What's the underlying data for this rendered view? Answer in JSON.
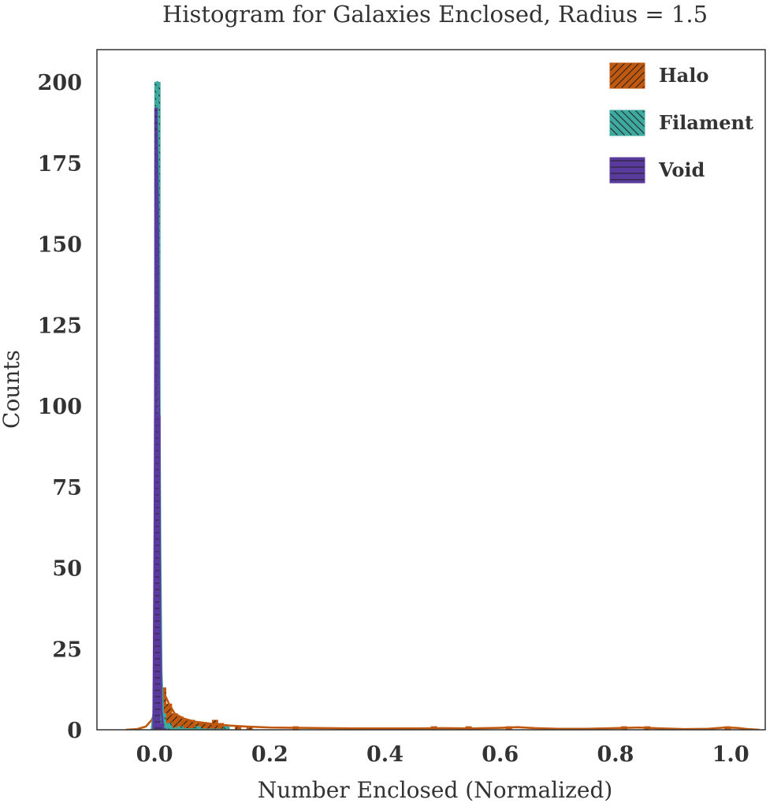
{
  "chart_data": {
    "type": "histogram",
    "title": "Histogram for Galaxies Enclosed, Radius = 1.5",
    "xlabel": "Number Enclosed (Normalized)",
    "ylabel": "Counts",
    "xlim": [
      -0.1,
      1.06
    ],
    "ylim": [
      0,
      210
    ],
    "xticks": [
      "0.0",
      "0.2",
      "0.4",
      "0.6",
      "0.8",
      "1.0"
    ],
    "yticks": [
      "0",
      "25",
      "50",
      "75",
      "100",
      "125",
      "150",
      "175",
      "200"
    ],
    "grid": false,
    "legend_position": "top-right",
    "series": [
      {
        "name": "Halo",
        "color": "#c0580f",
        "hatch": "diagonal-forward",
        "bin_width": 0.01,
        "bins": [
          {
            "x": 0.015,
            "count": 13
          },
          {
            "x": 0.025,
            "count": 8
          },
          {
            "x": 0.035,
            "count": 5
          },
          {
            "x": 0.045,
            "count": 4
          },
          {
            "x": 0.055,
            "count": 3
          },
          {
            "x": 0.065,
            "count": 3
          },
          {
            "x": 0.075,
            "count": 2
          },
          {
            "x": 0.085,
            "count": 2
          },
          {
            "x": 0.095,
            "count": 2
          },
          {
            "x": 0.105,
            "count": 3
          },
          {
            "x": 0.115,
            "count": 2
          },
          {
            "x": 0.125,
            "count": 1
          },
          {
            "x": 0.145,
            "count": 1
          },
          {
            "x": 0.165,
            "count": 1
          },
          {
            "x": 0.245,
            "count": 1
          },
          {
            "x": 0.485,
            "count": 1
          },
          {
            "x": 0.545,
            "count": 1
          },
          {
            "x": 0.615,
            "count": 1
          },
          {
            "x": 0.815,
            "count": 1
          },
          {
            "x": 0.855,
            "count": 1
          },
          {
            "x": 0.995,
            "count": 1
          }
        ],
        "kde": [
          [
            -0.05,
            0
          ],
          [
            -0.03,
            0.2
          ],
          [
            -0.015,
            1
          ],
          [
            -0.005,
            3
          ],
          [
            0.0,
            5
          ],
          [
            0.005,
            8
          ],
          [
            0.01,
            10.5
          ],
          [
            0.015,
            11.5
          ],
          [
            0.02,
            10
          ],
          [
            0.025,
            8
          ],
          [
            0.035,
            5
          ],
          [
            0.05,
            3.5
          ],
          [
            0.07,
            2.5
          ],
          [
            0.1,
            1.8
          ],
          [
            0.13,
            1.3
          ],
          [
            0.16,
            1
          ],
          [
            0.2,
            0.7
          ],
          [
            0.25,
            0.6
          ],
          [
            0.3,
            0.5
          ],
          [
            0.35,
            0.4
          ],
          [
            0.4,
            0.4
          ],
          [
            0.45,
            0.4
          ],
          [
            0.5,
            0.5
          ],
          [
            0.55,
            0.4
          ],
          [
            0.6,
            0.6
          ],
          [
            0.63,
            0.8
          ],
          [
            0.66,
            0.5
          ],
          [
            0.7,
            0.3
          ],
          [
            0.75,
            0.3
          ],
          [
            0.8,
            0.5
          ],
          [
            0.84,
            0.7
          ],
          [
            0.88,
            0.4
          ],
          [
            0.92,
            0.2
          ],
          [
            0.96,
            0.3
          ],
          [
            0.99,
            0.7
          ],
          [
            1.01,
            0.6
          ],
          [
            1.03,
            0.2
          ],
          [
            1.05,
            0
          ]
        ]
      },
      {
        "name": "Filament",
        "color": "#3ea99f",
        "hatch": "diagonal-back",
        "bin_width": 0.01,
        "bins": [
          {
            "x": 0.005,
            "count": 200
          },
          {
            "x": 0.015,
            "count": 5
          },
          {
            "x": 0.025,
            "count": 2
          },
          {
            "x": 0.045,
            "count": 1
          },
          {
            "x": 0.075,
            "count": 1
          },
          {
            "x": 0.125,
            "count": 1
          }
        ],
        "kde": [
          [
            -0.005,
            0
          ],
          [
            -0.002,
            5
          ],
          [
            0.0,
            30
          ],
          [
            0.002,
            110
          ],
          [
            0.004,
            185
          ],
          [
            0.005,
            200
          ],
          [
            0.006,
            185
          ],
          [
            0.008,
            120
          ],
          [
            0.01,
            55
          ],
          [
            0.012,
            18
          ],
          [
            0.015,
            4
          ],
          [
            0.02,
            0.8
          ],
          [
            0.03,
            0.4
          ],
          [
            0.05,
            0.2
          ],
          [
            0.08,
            0.1
          ],
          [
            0.13,
            0
          ]
        ]
      },
      {
        "name": "Void",
        "color": "#5b3a9e",
        "hatch": "horizontal",
        "bin_width": 0.005,
        "bins": [
          {
            "x": 0.0025,
            "count": 192
          },
          {
            "x": 0.0075,
            "count": 97
          },
          {
            "x": 0.0125,
            "count": 2
          }
        ],
        "kde": [
          [
            -0.002,
            0
          ],
          [
            0.0,
            60
          ],
          [
            0.002,
            150
          ],
          [
            0.004,
            185
          ],
          [
            0.006,
            160
          ],
          [
            0.008,
            90
          ],
          [
            0.01,
            30
          ],
          [
            0.012,
            6
          ],
          [
            0.015,
            0.5
          ],
          [
            0.02,
            0
          ]
        ]
      }
    ]
  }
}
